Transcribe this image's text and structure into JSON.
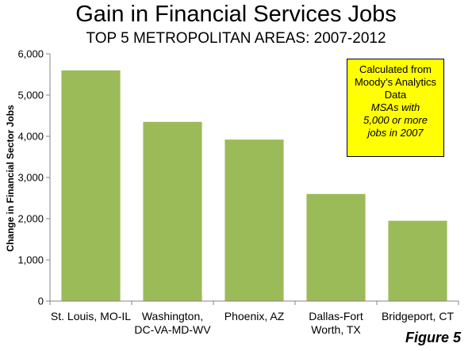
{
  "figure_label": "Figure 5",
  "note": {
    "lines": [
      "Calculated from",
      "Moody’s Analytics",
      "Data"
    ],
    "italic_lines": [
      "MSAs with",
      "5,000 or more",
      "jobs in 2007"
    ],
    "background": "#ffff00"
  },
  "chart_data": {
    "type": "bar",
    "title": "Gain in Financial Services Jobs",
    "subtitle": "TOP 5 METROPOLITAN AREAS: 2007-2012",
    "xlabel": "",
    "ylabel": "Change in Financial Sector Jobs",
    "categories": [
      [
        "St. Louis, MO-IL"
      ],
      [
        "Washington,",
        "DC-VA-MD-WV"
      ],
      [
        "Phoenix, AZ"
      ],
      [
        "Dallas-Fort",
        "Worth, TX"
      ],
      [
        "Bridgeport, CT"
      ]
    ],
    "values": [
      5600,
      4350,
      3920,
      2600,
      1950
    ],
    "ylim": [
      0,
      6000
    ],
    "yticks": [
      "0",
      "1,000",
      "2,000",
      "3,000",
      "4,000",
      "5,000",
      "6,000"
    ],
    "ytick_values": [
      0,
      1000,
      2000,
      3000,
      4000,
      5000,
      6000
    ],
    "grid": false,
    "bar_color": "#9bbb59"
  }
}
